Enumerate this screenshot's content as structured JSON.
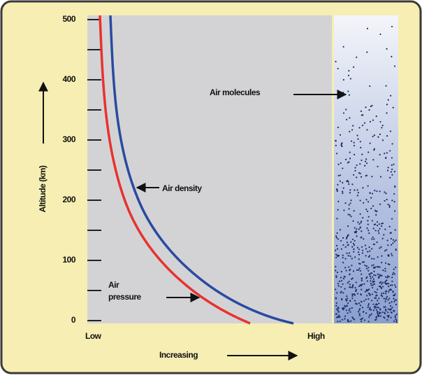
{
  "axis": {
    "title": "Altitude (km)",
    "ticks": [
      0,
      100,
      200,
      300,
      400,
      500
    ]
  },
  "x_axis": {
    "low": "Low",
    "high": "High",
    "title": "Increasing"
  },
  "labels": {
    "air_density": "Air density",
    "air_pressure": [
      "Air",
      "pressure"
    ],
    "air_molecules": "Air molecules"
  }
}
